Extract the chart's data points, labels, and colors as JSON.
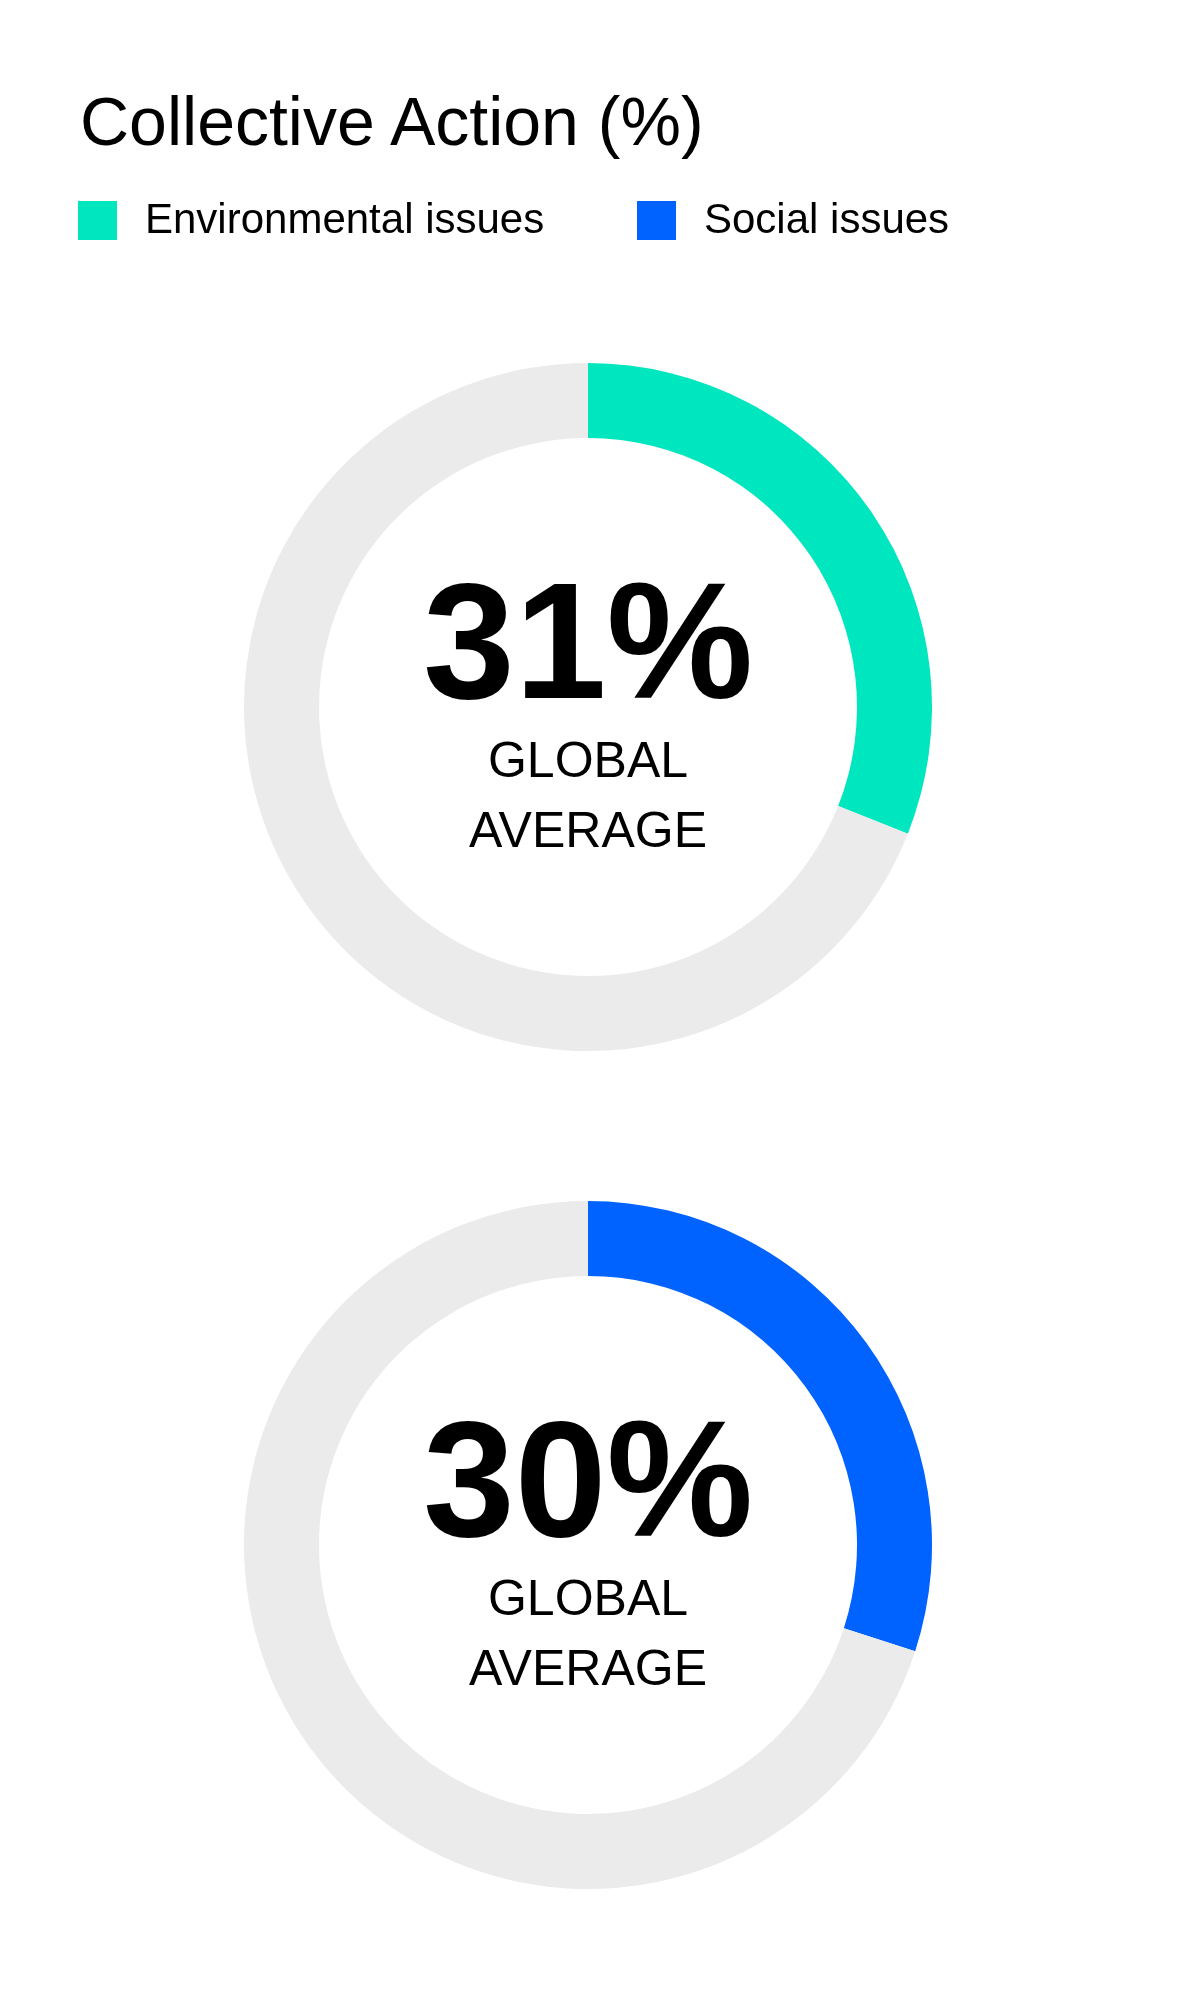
{
  "chart_data": [
    {
      "type": "donut",
      "title": "Collective Action (%)",
      "categories": [
        "Environmental issues",
        null
      ],
      "values": [
        31,
        69
      ],
      "colors": [
        "#00e6be",
        "#ebebeb"
      ],
      "value_labels": [
        "31%",
        null
      ],
      "annotations": [
        "GLOBAL AVERAGE"
      ],
      "legend": "top"
    },
    {
      "type": "donut",
      "categories": [
        "Social issues",
        null
      ],
      "values": [
        30,
        70
      ],
      "colors": [
        "#0062ff",
        "#ebebeb"
      ],
      "value_labels": [
        "30%",
        null
      ],
      "annotations": [
        "GLOBAL AVERAGE"
      ],
      "legend": "top"
    }
  ]
}
